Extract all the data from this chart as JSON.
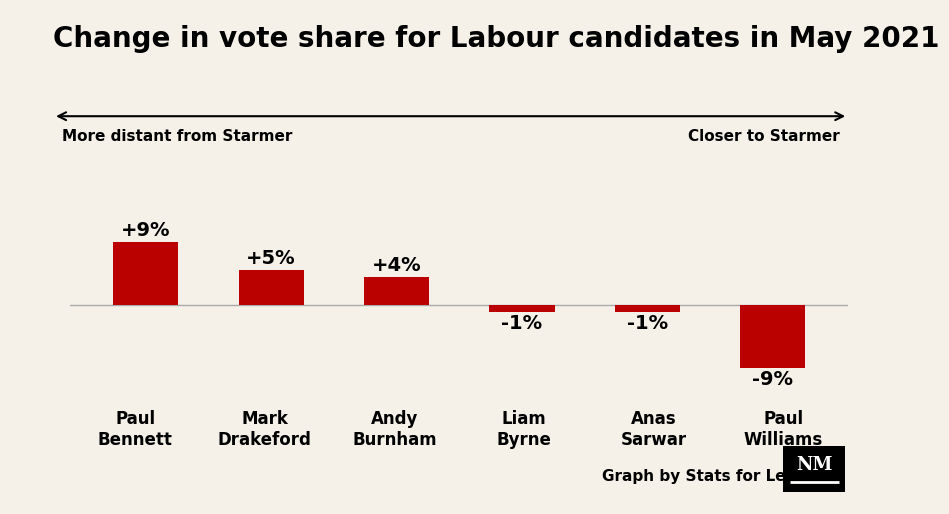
{
  "title": "Change in vote share for Labour candidates in May 2021",
  "categories": [
    "Paul\nBennett",
    "Mark\nDrakeford",
    "Andy\nBurnham",
    "Liam\nByrne",
    "Anas\nSarwar",
    "Paul\nWilliams"
  ],
  "values": [
    9,
    5,
    4,
    -1,
    -1,
    -9
  ],
  "labels": [
    "+9%",
    "+5%",
    "+4%",
    "-1%",
    "-1%",
    "-9%"
  ],
  "bar_color": "#bb0000",
  "background_color": "#f5f0e8",
  "arrow_label_left": "More distant from Starmer",
  "arrow_label_right": "Closer to Starmer",
  "attribution": "Graph by Stats for Lefties",
  "title_fontsize": 20,
  "label_fontsize": 14,
  "category_fontsize": 12,
  "arrow_label_fontsize": 11,
  "attribution_fontsize": 11,
  "ylim": [
    -13,
    14
  ],
  "bar_width": 0.52,
  "zeroline_color": "#aaaaaa",
  "zeroline_lw": 1.0
}
